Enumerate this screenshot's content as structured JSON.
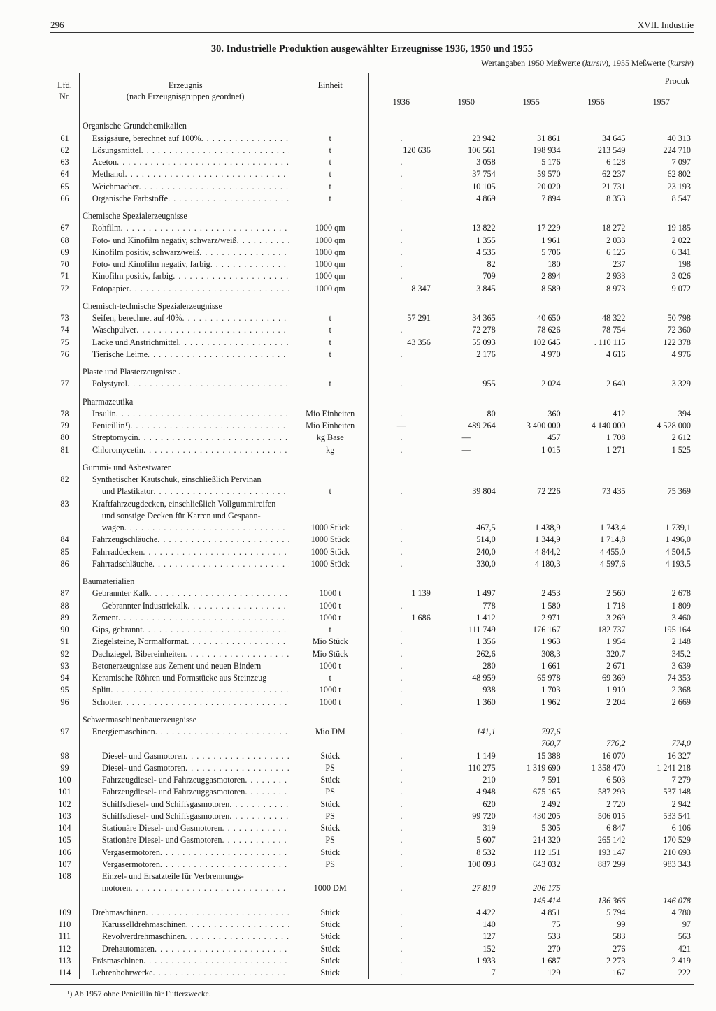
{
  "page_number": "296",
  "chapter": "XVII. Industrie",
  "title": "30. Industrielle Produktion ausgewählter Erzeugnisse 1936, 1950 und 1955",
  "subtitle_prefix": "Wertangaben 1950 Meßwerte (",
  "subtitle_italic1": "kursiv",
  "subtitle_mid": "), 1955 Meßwerte (",
  "subtitle_italic2": "kursiv",
  "subtitle_suffix": ")",
  "col_headers": {
    "nr": "Lfd.\nNr.",
    "prod": "Erzeugnis\n(nach Erzeugnisgruppen geordnet)",
    "unit": "Einheit",
    "span": "Produk",
    "y1936": "1936",
    "y1950": "1950",
    "y1955": "1955",
    "y1956": "1956",
    "y1957": "1957"
  },
  "groups": [
    {
      "heading": "Organische Grundchemikalien",
      "rows": [
        {
          "nr": "61",
          "ind": 1,
          "label": "Essigsäure, berechnet auf 100%",
          "dots": true,
          "unit": "t",
          "v": [
            ".",
            "23 942",
            "31 861",
            "34 645",
            "40 313"
          ]
        },
        {
          "nr": "62",
          "ind": 1,
          "label": "Lösungsmittel",
          "dots": true,
          "unit": "t",
          "v": [
            "120 636",
            "106 561",
            "198 934",
            "213 549",
            "224 710"
          ]
        },
        {
          "nr": "63",
          "ind": 1,
          "label": "Aceton",
          "dots": true,
          "unit": "t",
          "v": [
            ".",
            "3 058",
            "5 176",
            "6 128",
            "7 097"
          ]
        },
        {
          "nr": "64",
          "ind": 1,
          "label": "Methanol",
          "dots": true,
          "unit": "t",
          "v": [
            ".",
            "37 754",
            "59 570",
            "62 237",
            "62 802"
          ]
        },
        {
          "nr": "65",
          "ind": 1,
          "label": "Weichmacher",
          "dots": true,
          "unit": "t",
          "v": [
            ".",
            "10 105",
            "20 020",
            "21 731",
            "23 193"
          ]
        },
        {
          "nr": "66",
          "ind": 1,
          "label": "Organische Farbstoffe",
          "dots": true,
          "unit": "t",
          "v": [
            ".",
            "4 869",
            "7 894",
            "8 353",
            "8 547"
          ]
        }
      ]
    },
    {
      "heading": "Chemische Spezialerzeugnisse",
      "rows": [
        {
          "nr": "67",
          "ind": 1,
          "label": "Rohfilm",
          "dots": true,
          "unit": "1000 qm",
          "v": [
            ".",
            "13 822",
            "17 229",
            "18 272",
            "19 185"
          ]
        },
        {
          "nr": "68",
          "ind": 1,
          "label": "Foto- und Kinofilm negativ, schwarz/weiß",
          "dots": true,
          "unit": "1000 qm",
          "v": [
            ".",
            "1 355",
            "1 961",
            "2 033",
            "2 022"
          ]
        },
        {
          "nr": "69",
          "ind": 1,
          "label": "Kinofilm positiv, schwarz/weiß",
          "dots": true,
          "unit": "1000 qm",
          "v": [
            ".",
            "4 535",
            "5 706",
            "6 125",
            "6 341"
          ]
        },
        {
          "nr": "70",
          "ind": 1,
          "label": "Foto- und Kinofilm negativ, farbig",
          "dots": true,
          "unit": "1000 qm",
          "v": [
            ".",
            "82",
            "180",
            "237",
            "198"
          ]
        },
        {
          "nr": "71",
          "ind": 1,
          "label": "Kinofilm positiv, farbig",
          "dots": true,
          "unit": "1000 qm",
          "v": [
            ".",
            "709",
            "2 894",
            "2 933",
            "3 026"
          ]
        },
        {
          "nr": "72",
          "ind": 1,
          "label": "Fotopapier",
          "dots": true,
          "unit": "1000 qm",
          "v": [
            "8 347",
            "3 845",
            "8 589",
            "8 973",
            "9 072"
          ]
        }
      ]
    },
    {
      "heading": "Chemisch-technische Spezialerzeugnisse",
      "rows": [
        {
          "nr": "73",
          "ind": 1,
          "label": "Seifen, berechnet auf 40%",
          "dots": true,
          "unit": "t",
          "v": [
            "57 291",
            "34 365",
            "40 650",
            "48 322",
            "50 798"
          ]
        },
        {
          "nr": "74",
          "ind": 1,
          "label": "Waschpulver",
          "dots": true,
          "unit": "t",
          "v": [
            ".",
            "72 278",
            "78 626",
            "78 754",
            "72 360"
          ]
        },
        {
          "nr": "75",
          "ind": 1,
          "label": "Lacke und Anstrichmittel",
          "dots": true,
          "unit": "t",
          "v": [
            "43 356",
            "55 093",
            "102 645",
            ". 110 115",
            "122 378"
          ]
        },
        {
          "nr": "76",
          "ind": 1,
          "label": "Tierische Leime",
          "dots": true,
          "unit": "t",
          "v": [
            ".",
            "2 176",
            "4 970",
            "4 616",
            "4 976"
          ]
        }
      ]
    },
    {
      "heading": "Plaste und Plasterzeugnisse .",
      "rows": [
        {
          "nr": "77",
          "ind": 1,
          "label": "Polystyrol",
          "dots": true,
          "unit": "t",
          "v": [
            ".",
            "955",
            "2 024",
            "2 640",
            "3 329"
          ]
        }
      ]
    },
    {
      "heading": "Pharmazeutika",
      "rows": [
        {
          "nr": "78",
          "ind": 1,
          "label": "Insulin",
          "dots": true,
          "unit": "Mio Einheiten",
          "v": [
            ".",
            "80",
            "360",
            "412",
            "394"
          ]
        },
        {
          "nr": "79",
          "ind": 1,
          "label": "Penicillin¹)",
          "dots": true,
          "unit": "Mio Einheiten",
          "v": [
            "—",
            "489 264",
            "3 400 000",
            "4 140 000",
            "4 528 000"
          ]
        },
        {
          "nr": "80",
          "ind": 1,
          "label": "Streptomycin",
          "dots": true,
          "unit": "kg Base",
          "v": [
            ".",
            "—",
            "457",
            "1 708",
            "2 612"
          ]
        },
        {
          "nr": "81",
          "ind": 1,
          "label": "Chloromycetin",
          "dots": true,
          "unit": "kg",
          "v": [
            ".",
            "—",
            "1 015",
            "1 271",
            "1 525"
          ]
        }
      ]
    },
    {
      "heading": "Gummi- und Asbestwaren",
      "rows": [
        {
          "nr": "82",
          "ind": 1,
          "label": "Synthetischer Kautschuk, einschließlich Pervinan",
          "dots": false,
          "unit": "",
          "v": [
            "",
            "",
            "",
            "",
            ""
          ]
        },
        {
          "nr": "",
          "ind": 2,
          "label": "und Plastikator",
          "dots": true,
          "unit": "t",
          "v": [
            ".",
            "39 804",
            "72 226",
            "73 435",
            "75 369"
          ]
        },
        {
          "nr": "83",
          "ind": 1,
          "label": "Kraftfahrzeugdecken, einschließlich Vollgummireifen",
          "dots": false,
          "unit": "",
          "v": [
            "",
            "",
            "",
            "",
            ""
          ]
        },
        {
          "nr": "",
          "ind": 2,
          "label": "und sonstige Decken für Karren und Gespann-",
          "dots": false,
          "unit": "",
          "v": [
            "",
            "",
            "",
            "",
            ""
          ]
        },
        {
          "nr": "",
          "ind": 2,
          "label": "wagen",
          "dots": true,
          "unit": "1000 Stück",
          "v": [
            ".",
            "467,5",
            "1 438,9",
            "1 743,4",
            "1 739,1"
          ]
        },
        {
          "nr": "84",
          "ind": 1,
          "label": "Fahrzeugschläuche",
          "dots": true,
          "unit": "1000 Stück",
          "v": [
            ".",
            "514,0",
            "1 344,9",
            "1 714,8",
            "1 496,0"
          ]
        },
        {
          "nr": "85",
          "ind": 1,
          "label": "Fahrraddecken",
          "dots": true,
          "unit": "1000 Stück",
          "v": [
            ".",
            "240,0",
            "4 844,2",
            "4 455,0",
            "4 504,5"
          ]
        },
        {
          "nr": "86",
          "ind": 1,
          "label": "Fahrradschläuche",
          "dots": true,
          "unit": "1000 Stück",
          "v": [
            ".",
            "330,0",
            "4 180,3",
            "4 597,6",
            "4 193,5"
          ]
        }
      ]
    },
    {
      "heading": "Baumaterialien",
      "rows": [
        {
          "nr": "87",
          "ind": 1,
          "label": "Gebrannter Kalk",
          "dots": true,
          "unit": "1000 t",
          "v": [
            "1 139",
            "1 497",
            "2 453",
            "2 560",
            "2 678"
          ]
        },
        {
          "nr": "88",
          "ind": 2,
          "label": "Gebrannter Industriekalk",
          "dots": true,
          "unit": "1000 t",
          "v": [
            ".",
            "778",
            "1 580",
            "1 718",
            "1 809"
          ]
        },
        {
          "nr": "89",
          "ind": 1,
          "label": "Zement",
          "dots": true,
          "unit": "1000 t",
          "v": [
            "1 686",
            "1 412",
            "2 971",
            "3 269",
            "3 460"
          ]
        },
        {
          "nr": "90",
          "ind": 1,
          "label": "Gips, gebrannt",
          "dots": true,
          "unit": "t",
          "v": [
            ".",
            "111 749",
            "176 167",
            "182 737",
            "195 164"
          ]
        },
        {
          "nr": "91",
          "ind": 1,
          "label": "Ziegelsteine, Normalformat",
          "dots": true,
          "unit": "Mio Stück",
          "v": [
            ".",
            "1 356",
            "1 963",
            "1 954",
            "2 148"
          ]
        },
        {
          "nr": "92",
          "ind": 1,
          "label": "Dachziegel, Bibereinheiten",
          "dots": true,
          "unit": "Mio Stück",
          "v": [
            ".",
            "262,6",
            "308,3",
            "320,7",
            "345,2"
          ]
        },
        {
          "nr": "93",
          "ind": 1,
          "label": "Betonerzeugnisse aus Zement und neuen Bindern",
          "dots": false,
          "unit": "1000 t",
          "v": [
            ".",
            "280",
            "1 661",
            "2 671",
            "3 639"
          ]
        },
        {
          "nr": "94",
          "ind": 1,
          "label": "Keramische Röhren und Formstücke aus Steinzeug",
          "dots": false,
          "unit": "t",
          "v": [
            ".",
            "48 959",
            "65 978",
            "69 369",
            "74 353"
          ]
        },
        {
          "nr": "95",
          "ind": 1,
          "label": "Splitt",
          "dots": true,
          "unit": "1000 t",
          "v": [
            ".",
            "938",
            "1 703",
            "1 910",
            "2 368"
          ]
        },
        {
          "nr": "96",
          "ind": 1,
          "label": "Schotter",
          "dots": true,
          "unit": "1000 t",
          "v": [
            ".",
            "1 360",
            "1 962",
            "2 204",
            "2 669"
          ]
        }
      ]
    },
    {
      "heading": "Schwermaschinenbauerzeugnisse",
      "rows": [
        {
          "nr": "97",
          "ind": 1,
          "label": "Energiemaschinen",
          "dots": true,
          "unit": "Mio DM",
          "v": [
            ".",
            "141,1",
            "797,6",
            "",
            ""
          ],
          "italic": [
            false,
            true,
            true,
            false,
            false
          ]
        },
        {
          "nr": "",
          "ind": 1,
          "label": "",
          "dots": false,
          "unit": "",
          "v": [
            "",
            "",
            "760,7",
            "776,2",
            "774,0"
          ],
          "italic": [
            false,
            false,
            true,
            true,
            true
          ]
        },
        {
          "nr": "98",
          "ind": 2,
          "label": "Diesel- und Gasmotoren",
          "dots": true,
          "unit": "Stück",
          "v": [
            ".",
            "1 149",
            "15 388",
            "16 070",
            "16 327"
          ]
        },
        {
          "nr": "99",
          "ind": 2,
          "label": "Diesel- und Gasmotoren",
          "dots": true,
          "unit": "PS",
          "v": [
            ".",
            "110 275",
            "1 319 690",
            "1 358 470",
            "1 241 218"
          ]
        },
        {
          "nr": "100",
          "ind": 2,
          "label": "Fahrzeugdiesel- und Fahrzeuggasmotoren",
          "dots": true,
          "unit": "Stück",
          "v": [
            ".",
            "210",
            "7 591",
            "6 503",
            "7 279"
          ]
        },
        {
          "nr": "101",
          "ind": 2,
          "label": "Fahrzeugdiesel- und Fahrzeuggasmotoren",
          "dots": true,
          "unit": "PS",
          "v": [
            ".",
            "4 948",
            "675 165",
            "587 293",
            "537 148"
          ]
        },
        {
          "nr": "102",
          "ind": 2,
          "label": "Schiffsdiesel- und Schiffsgasmotoren",
          "dots": true,
          "unit": "Stück",
          "v": [
            ".",
            "620",
            "2 492",
            "2 720",
            "2 942"
          ]
        },
        {
          "nr": "103",
          "ind": 2,
          "label": "Schiffsdiesel- und Schiffsgasmotoren",
          "dots": true,
          "unit": "PS",
          "v": [
            ".",
            "99 720",
            "430 205",
            "506 015",
            "533 541"
          ]
        },
        {
          "nr": "104",
          "ind": 2,
          "label": "Stationäre Diesel- und Gasmotoren",
          "dots": true,
          "unit": "Stück",
          "v": [
            ".",
            "319",
            "5 305",
            "6 847",
            "6 106"
          ]
        },
        {
          "nr": "105",
          "ind": 2,
          "label": "Stationäre Diesel- und Gasmotoren",
          "dots": true,
          "unit": "PS",
          "v": [
            ".",
            "5 607",
            "214 320",
            "265 142",
            "170 529"
          ]
        },
        {
          "nr": "106",
          "ind": 2,
          "label": "Vergasermotoren",
          "dots": true,
          "unit": "Stück",
          "v": [
            ".",
            "8 532",
            "112 151",
            "193 147",
            "210 693"
          ]
        },
        {
          "nr": "107",
          "ind": 2,
          "label": "Vergasermotoren",
          "dots": true,
          "unit": "PS",
          "v": [
            ".",
            "100 093",
            "643 032",
            "887 299",
            "983 343"
          ]
        },
        {
          "nr": "108",
          "ind": 2,
          "label": "Einzel- und Ersatzteile für Verbrennungs-",
          "dots": false,
          "unit": "",
          "v": [
            "",
            "",
            "",
            "",
            ""
          ]
        },
        {
          "nr": "",
          "ind": 2,
          "label": "motoren",
          "dots": true,
          "unit": "1000 DM",
          "v": [
            ".",
            "27 810",
            "206 175",
            "",
            ""
          ],
          "italic": [
            false,
            true,
            true,
            false,
            false
          ]
        },
        {
          "nr": "",
          "ind": 2,
          "label": "",
          "dots": false,
          "unit": "",
          "v": [
            "",
            "",
            "145 414",
            "136 366",
            "146 078"
          ],
          "italic": [
            false,
            false,
            true,
            true,
            true
          ]
        },
        {
          "nr": "109",
          "ind": 1,
          "label": "Drehmaschinen",
          "dots": true,
          "unit": "Stück",
          "v": [
            ".",
            "4 422",
            "4 851",
            "5 794",
            "4 780"
          ]
        },
        {
          "nr": "110",
          "ind": 2,
          "label": "Karusselldrehmaschinen",
          "dots": true,
          "unit": "Stück",
          "v": [
            ".",
            "140",
            "75",
            "99",
            "97"
          ]
        },
        {
          "nr": "111",
          "ind": 2,
          "label": "Revolverdrehmaschinen",
          "dots": true,
          "unit": "Stück",
          "v": [
            ".",
            "127",
            "533",
            "583",
            "563"
          ]
        },
        {
          "nr": "112",
          "ind": 2,
          "label": "Drehautomaten",
          "dots": true,
          "unit": "Stück",
          "v": [
            ".",
            "152",
            "270",
            "276",
            "421"
          ]
        },
        {
          "nr": "113",
          "ind": 1,
          "label": "Fräsmaschinen",
          "dots": true,
          "unit": "Stück",
          "v": [
            ".",
            "1 933",
            "1 687",
            "2 273",
            "2 419"
          ]
        },
        {
          "nr": "114",
          "ind": 1,
          "label": "Lehrenbohrwerke",
          "dots": true,
          "unit": "Stück",
          "v": [
            ".",
            "7",
            "129",
            "167",
            "222"
          ]
        }
      ]
    }
  ],
  "footnote": "¹) Ab 1957 ohne Penicillin für Futterzwecke."
}
